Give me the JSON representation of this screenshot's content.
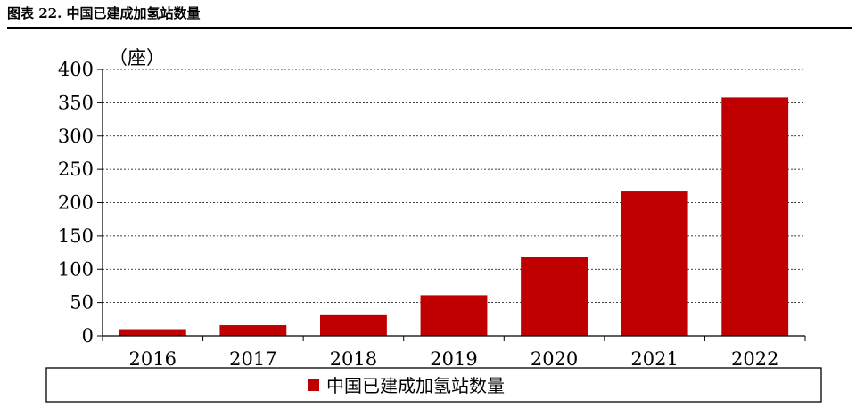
{
  "figure_title": "图表 22. 中国已建成加氢站数量",
  "chart_data": {
    "type": "bar",
    "categories": [
      "2016",
      "2017",
      "2018",
      "2019",
      "2020",
      "2021",
      "2022"
    ],
    "series": [
      {
        "name": "中国已建成加氢站数量",
        "values": [
          10,
          16,
          31,
          61,
          118,
          218,
          358
        ],
        "color": "#C00000"
      }
    ],
    "unit_label": "（座）",
    "ylim": [
      0,
      400
    ],
    "yticks": [
      "0",
      "50",
      "100",
      "150",
      "200",
      "250",
      "300",
      "350",
      "400"
    ],
    "grid": "horizontal-dashed",
    "legend_position": "bottom"
  }
}
